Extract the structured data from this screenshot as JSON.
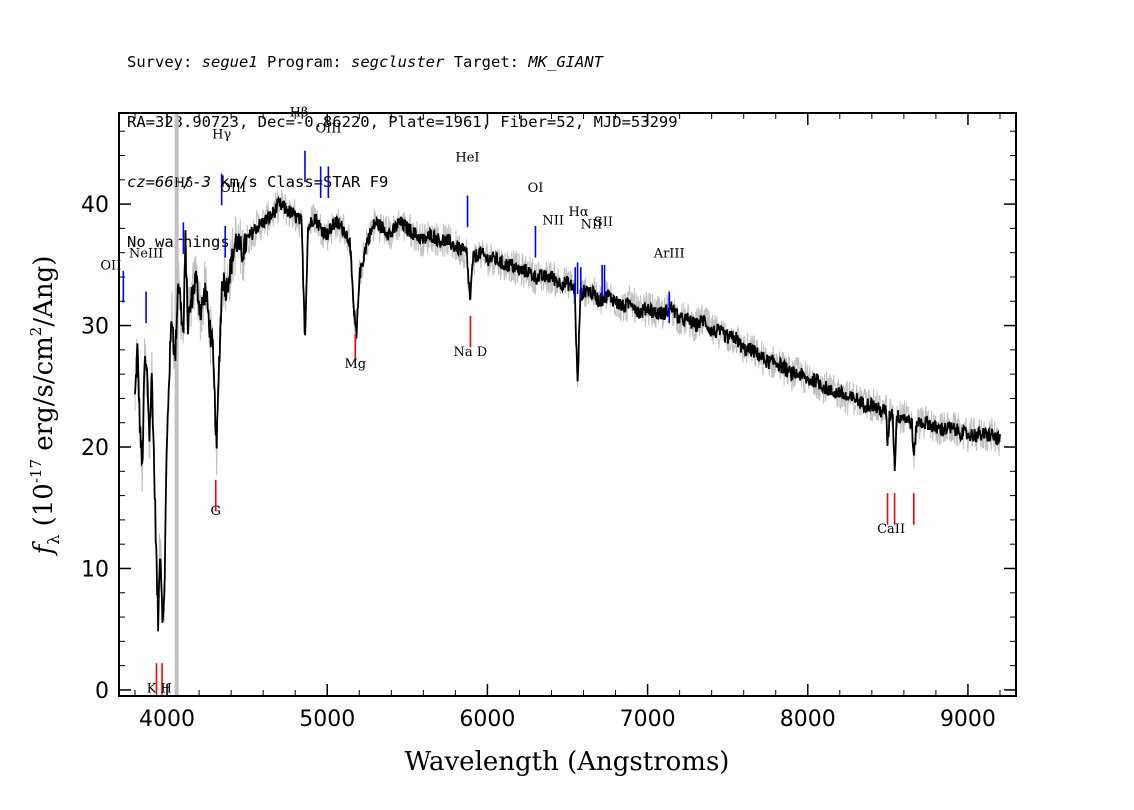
{
  "header": {
    "survey_label": "Survey:",
    "survey": "segue1",
    "program_label": "Program:",
    "program": "segcluster",
    "target_label": "Target:",
    "target": "MK_GIANT",
    "line2": "RA=323.90723, Dec=-0.86220, Plate=1961, Fiber=52, MJD=53299",
    "cz": "cz=66+/-3",
    "line3_rest": " km/s Class=STAR F9",
    "line4": "No warnings."
  },
  "chart_data": {
    "type": "line",
    "xlabel": "Wavelength (Angstroms)",
    "ylabel_main": "f",
    "ylabel_sub": "λ",
    "ylabel_units": " (10",
    "ylabel_exp": "-17",
    "ylabel_tail": " erg/s/cm",
    "ylabel_exp2": "2",
    "ylabel_end": "/Ang)",
    "xlim": [
      3700,
      9300
    ],
    "ylim": [
      -0.5,
      47.5
    ],
    "xticks": [
      4000,
      5000,
      6000,
      7000,
      8000,
      9000
    ],
    "yticks": [
      0,
      10,
      20,
      30,
      40
    ],
    "colors": {
      "flux": "#000000",
      "error": "#c0c0c0",
      "emission": "#0000ff",
      "absorption": "#ff0000",
      "sky": "#000000"
    },
    "spectrum_knots": [
      [
        3800,
        24
      ],
      [
        3815,
        28
      ],
      [
        3830,
        22
      ],
      [
        3845,
        18
      ],
      [
        3860,
        27
      ],
      [
        3875,
        26
      ],
      [
        3890,
        21
      ],
      [
        3905,
        26
      ],
      [
        3920,
        18
      ],
      [
        3935,
        10
      ],
      [
        3945,
        5
      ],
      [
        3955,
        12
      ],
      [
        3965,
        9
      ],
      [
        3975,
        5
      ],
      [
        3985,
        9
      ],
      [
        3995,
        18
      ],
      [
        4010,
        25
      ],
      [
        4030,
        31
      ],
      [
        4050,
        27
      ],
      [
        4070,
        34
      ],
      [
        4090,
        31
      ],
      [
        4102,
        29
      ],
      [
        4115,
        37
      ],
      [
        4130,
        30
      ],
      [
        4150,
        32
      ],
      [
        4180,
        34
      ],
      [
        4210,
        31
      ],
      [
        4240,
        33
      ],
      [
        4265,
        30
      ],
      [
        4285,
        28
      ],
      [
        4300,
        23
      ],
      [
        4310,
        20
      ],
      [
        4325,
        27
      ],
      [
        4345,
        34
      ],
      [
        4370,
        33
      ],
      [
        4400,
        35
      ],
      [
        4430,
        37
      ],
      [
        4470,
        36
      ],
      [
        4500,
        37
      ],
      [
        4550,
        38
      ],
      [
        4600,
        38.5
      ],
      [
        4650,
        39
      ],
      [
        4700,
        40
      ],
      [
        4750,
        39.5
      ],
      [
        4800,
        39
      ],
      [
        4840,
        38.5
      ],
      [
        4861,
        29
      ],
      [
        4880,
        38
      ],
      [
        4920,
        39
      ],
      [
        4960,
        38
      ],
      [
        5000,
        37.5
      ],
      [
        5050,
        38.5
      ],
      [
        5100,
        38
      ],
      [
        5140,
        37
      ],
      [
        5167,
        31
      ],
      [
        5183,
        29
      ],
      [
        5200,
        34
      ],
      [
        5250,
        37
      ],
      [
        5300,
        38.5
      ],
      [
        5350,
        38
      ],
      [
        5400,
        37.5
      ],
      [
        5450,
        38.5
      ],
      [
        5500,
        38
      ],
      [
        5550,
        37.5
      ],
      [
        5600,
        37
      ],
      [
        5650,
        37.5
      ],
      [
        5700,
        37
      ],
      [
        5750,
        37
      ],
      [
        5800,
        36.5
      ],
      [
        5870,
        36
      ],
      [
        5892,
        32
      ],
      [
        5910,
        35.5
      ],
      [
        5950,
        36
      ],
      [
        6000,
        35.5
      ],
      [
        6050,
        35.5
      ],
      [
        6100,
        35
      ],
      [
        6150,
        35
      ],
      [
        6200,
        34.5
      ],
      [
        6250,
        34.5
      ],
      [
        6300,
        34
      ],
      [
        6350,
        34
      ],
      [
        6400,
        34
      ],
      [
        6450,
        33.5
      ],
      [
        6500,
        33.5
      ],
      [
        6545,
        33
      ],
      [
        6563,
        25
      ],
      [
        6580,
        32.5
      ],
      [
        6620,
        33
      ],
      [
        6670,
        32.5
      ],
      [
        6700,
        32
      ],
      [
        6750,
        32.5
      ],
      [
        6800,
        32
      ],
      [
        6850,
        31.5
      ],
      [
        6900,
        32
      ],
      [
        6950,
        31
      ],
      [
        7000,
        31.5
      ],
      [
        7050,
        31
      ],
      [
        7100,
        31
      ],
      [
        7150,
        31.5
      ],
      [
        7200,
        30.5
      ],
      [
        7250,
        30.5
      ],
      [
        7300,
        30
      ],
      [
        7350,
        30.5
      ],
      [
        7400,
        29.5
      ],
      [
        7450,
        29.5
      ],
      [
        7500,
        29
      ],
      [
        7550,
        29
      ],
      [
        7600,
        28
      ],
      [
        7650,
        28
      ],
      [
        7700,
        27.5
      ],
      [
        7750,
        27
      ],
      [
        7800,
        27
      ],
      [
        7850,
        26.5
      ],
      [
        7900,
        26
      ],
      [
        7950,
        26
      ],
      [
        8000,
        25.5
      ],
      [
        8050,
        25.5
      ],
      [
        8100,
        25
      ],
      [
        8150,
        24.5
      ],
      [
        8200,
        24.5
      ],
      [
        8250,
        24
      ],
      [
        8300,
        24
      ],
      [
        8350,
        23.5
      ],
      [
        8400,
        23.5
      ],
      [
        8450,
        23
      ],
      [
        8490,
        23
      ],
      [
        8498,
        20
      ],
      [
        8510,
        22.5
      ],
      [
        8530,
        23
      ],
      [
        8542,
        18
      ],
      [
        8555,
        22.5
      ],
      [
        8600,
        22.5
      ],
      [
        8650,
        22
      ],
      [
        8662,
        19
      ],
      [
        8680,
        22
      ],
      [
        8750,
        22
      ],
      [
        8800,
        21.5
      ],
      [
        8900,
        21.5
      ],
      [
        9000,
        21
      ],
      [
        9100,
        21
      ],
      [
        9150,
        21
      ],
      [
        9200,
        20.5
      ]
    ],
    "sky_line_x": 4060,
    "emission_lines": [
      {
        "name": "OII",
        "x": 3727,
        "y": 34.5,
        "label_y": 34.7
      },
      {
        "name": "NeIII",
        "x": 3869,
        "y": 32.8,
        "label_y": 35.5
      },
      {
        "name": "Hδ",
        "x": 4102,
        "y": 38.5,
        "label_y": 41.2
      },
      {
        "name": "Hγ",
        "x": 4341,
        "y": 42.5,
        "label_y": 45.2
      },
      {
        "name": "OIII",
        "x": 4363,
        "y": 38.2,
        "label_y": 40.9
      },
      {
        "name": "Hβ",
        "x": 4861,
        "y": 44.4,
        "label_y": 47.1
      },
      {
        "name": "OIII",
        "x": 4959,
        "y": 43.1,
        "label_y": 45.8
      },
      {
        "name": "OIII",
        "x": 5007,
        "y": 43.1,
        "label_y": 0
      },
      {
        "name": "HeI",
        "x": 5876,
        "y": 40.7,
        "label_y": 43.4
      },
      {
        "name": "OI",
        "x": 6300,
        "y": 38.2,
        "label_y": 40.9
      },
      {
        "name": "NII",
        "x": 6548,
        "y": 34.8,
        "label_y": 38.2
      },
      {
        "name": "Hα",
        "x": 6563,
        "y": 35.2,
        "label_y": 38.7
      },
      {
        "name": "NII",
        "x": 6583,
        "y": 34.8,
        "label_y": 0
      },
      {
        "name": "SII",
        "x": 6716,
        "y": 35.0,
        "label_y": 38.0
      },
      {
        "name": "SII",
        "x": 6731,
        "y": 35.0,
        "label_y": 38.0
      },
      {
        "name": "ArIII",
        "x": 7135,
        "y": 32.8,
        "label_y": 35.5
      }
    ],
    "absorption_lines": [
      {
        "name": "K",
        "x": 3934,
        "y": 2.2,
        "label_y": -0.2
      },
      {
        "name": "H",
        "x": 3969,
        "y": 2.2,
        "label_y": -0.2
      },
      {
        "name": "G",
        "x": 4304,
        "y": 17.3,
        "label_y": 14.5
      },
      {
        "name": "Mg",
        "x": 5175,
        "y": 29.3,
        "label_y": 26.5
      },
      {
        "name": "Na",
        "x": 5894,
        "y": 30.8,
        "label_y": 27.6
      },
      {
        "name": "CaII",
        "x": 8498,
        "y": 16.2,
        "label_y": 13.0
      },
      {
        "name": "CaII",
        "x": 8542,
        "y": 16.2,
        "label_y": 0
      },
      {
        "name": "CaII",
        "x": 8662,
        "y": 16.2,
        "label_y": 0
      }
    ],
    "label_texts": {
      "OII": "OII",
      "NeIII": "NeIII",
      "Hdelta": "Hδ",
      "Hgamma": "Hγ",
      "OIII_a": "OIII",
      "Hbeta": "Hβ",
      "OIII_b": "OIII",
      "HeI": "HeI",
      "OI": "OI",
      "NII_a": "NII",
      "Halpha": "Hα",
      "NII_b": "NII",
      "SII": "SII",
      "ArIII": "ArIII",
      "KH": "K H",
      "G": "G",
      "Mg": "Mg",
      "NaD": "Na D",
      "CaII": "CaII"
    }
  }
}
